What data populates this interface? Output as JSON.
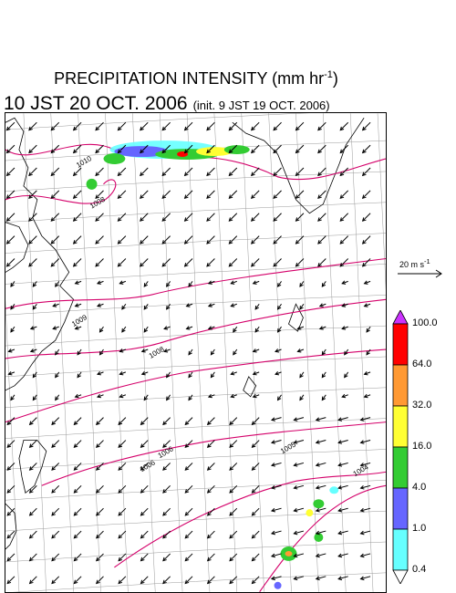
{
  "header": {
    "title": "PRECIPITATION INTENSITY (mm hr",
    "title_sup": "-1",
    "title_end": ")",
    "valid_time": "10 JST 20 OCT. 2006",
    "init_time": "(init. 9 JST 19 OCT. 2006)"
  },
  "wind_scale": {
    "label": "20 m s",
    "label_sup": "-1"
  },
  "colorbar": {
    "levels": [
      "100.0",
      "64.0",
      "32.0",
      "16.0",
      "4.0",
      "1.0",
      "0.4"
    ],
    "colors": [
      "#ff0000",
      "#ff9933",
      "#ffff33",
      "#33cc33",
      "#6666ff",
      "#66ffff"
    ],
    "top_triangle_color": "#cc33ff",
    "bottom_triangle_color": "#ffffff"
  },
  "isobars": {
    "color": "#d4006a",
    "labels": [
      "1010",
      "1008",
      "1009",
      "1008",
      "1006",
      "1006",
      "1005",
      "1004"
    ]
  }
}
